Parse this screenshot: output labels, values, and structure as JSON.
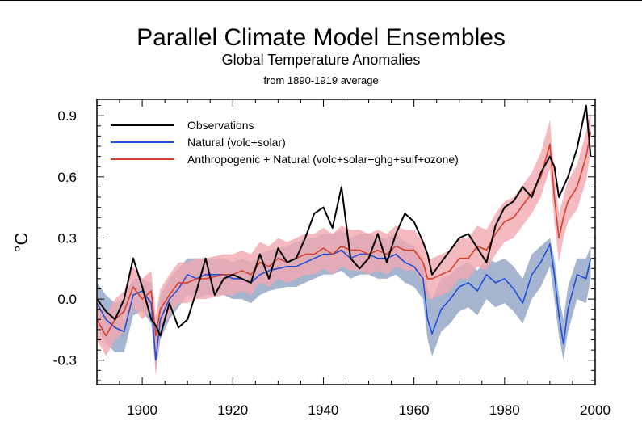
{
  "chart_data": {
    "type": "line",
    "title": "Parallel Climate Model Ensembles",
    "subtitle": "Global Temperature Anomalies",
    "subsubtitle": "from 1890-1919 average",
    "xlabel": "",
    "ylabel": "°C",
    "xlim": [
      1890,
      2000
    ],
    "ylim": [
      -0.42,
      0.98
    ],
    "x_ticks": [
      1900,
      1920,
      1940,
      1960,
      1980,
      2000
    ],
    "y_ticks": [
      -0.3,
      0.0,
      0.3,
      0.6,
      0.9
    ],
    "y_tick_labels": [
      "-0.3",
      "0.0",
      "0.3",
      "0.6",
      "0.9"
    ],
    "legend_position": "top-left",
    "grid": false,
    "colors": {
      "observations": "#000000",
      "natural": "#1f4fd8",
      "anthro": "#d6402a",
      "natural_band": "#8ea3c4",
      "anthro_band": "#f1a9b0"
    },
    "years": [
      1890,
      1892,
      1894,
      1896,
      1898,
      1900,
      1902,
      1903,
      1904,
      1906,
      1908,
      1910,
      1912,
      1914,
      1916,
      1918,
      1920,
      1922,
      1924,
      1926,
      1928,
      1930,
      1932,
      1934,
      1936,
      1938,
      1940,
      1942,
      1944,
      1946,
      1948,
      1950,
      1952,
      1954,
      1956,
      1958,
      1960,
      1962,
      1963,
      1964,
      1966,
      1968,
      1970,
      1972,
      1974,
      1976,
      1978,
      1980,
      1982,
      1984,
      1986,
      1988,
      1990,
      1991,
      1992,
      1993,
      1994,
      1996,
      1998,
      1999
    ],
    "series": [
      {
        "name": "Observations",
        "values": [
          0.0,
          -0.06,
          -0.1,
          0.0,
          0.2,
          0.06,
          -0.1,
          -0.13,
          -0.18,
          -0.02,
          -0.14,
          -0.1,
          0.04,
          0.2,
          0.02,
          0.1,
          0.12,
          0.1,
          0.08,
          0.22,
          0.1,
          0.25,
          0.18,
          0.2,
          0.3,
          0.42,
          0.45,
          0.35,
          0.55,
          0.2,
          0.15,
          0.2,
          0.32,
          0.18,
          0.32,
          0.42,
          0.38,
          0.28,
          0.22,
          0.12,
          0.18,
          0.24,
          0.3,
          0.32,
          0.25,
          0.18,
          0.36,
          0.45,
          0.48,
          0.55,
          0.5,
          0.62,
          0.7,
          0.65,
          0.5,
          0.55,
          0.6,
          0.74,
          0.95,
          0.7
        ]
      },
      {
        "name": "Natural (volc+solar)",
        "values": [
          -0.02,
          -0.1,
          -0.14,
          -0.16,
          0.02,
          0.04,
          -0.02,
          -0.3,
          -0.1,
          0.0,
          0.05,
          0.12,
          0.1,
          0.12,
          0.12,
          0.12,
          0.1,
          0.1,
          0.08,
          0.12,
          0.14,
          0.15,
          0.16,
          0.16,
          0.18,
          0.2,
          0.22,
          0.22,
          0.24,
          0.2,
          0.22,
          0.22,
          0.2,
          0.2,
          0.22,
          0.18,
          0.16,
          0.1,
          -0.1,
          -0.17,
          -0.05,
          0.0,
          0.06,
          0.08,
          0.04,
          0.12,
          0.08,
          0.1,
          0.05,
          -0.02,
          0.12,
          0.18,
          0.27,
          0.12,
          -0.08,
          -0.22,
          -0.05,
          0.12,
          0.1,
          0.2
        ]
      },
      {
        "name": "Anthropogenic + Natural (volc+solar+ghg+sulf+ozone)",
        "values": [
          -0.1,
          -0.18,
          -0.1,
          -0.06,
          0.06,
          0.0,
          0.04,
          -0.18,
          -0.05,
          0.02,
          0.08,
          0.08,
          0.1,
          0.1,
          0.11,
          0.12,
          0.12,
          0.14,
          0.12,
          0.18,
          0.16,
          0.2,
          0.18,
          0.2,
          0.22,
          0.22,
          0.25,
          0.22,
          0.26,
          0.24,
          0.24,
          0.22,
          0.24,
          0.22,
          0.26,
          0.24,
          0.24,
          0.18,
          0.1,
          0.1,
          0.12,
          0.14,
          0.2,
          0.2,
          0.26,
          0.24,
          0.32,
          0.38,
          0.4,
          0.46,
          0.52,
          0.6,
          0.76,
          0.5,
          0.3,
          0.4,
          0.48,
          0.55,
          0.7,
          0.82
        ]
      }
    ],
    "bands": [
      {
        "name": "Natural range",
        "upper": [
          0.08,
          0.02,
          -0.02,
          0.0,
          0.1,
          0.1,
          0.08,
          -0.18,
          0.02,
          0.1,
          0.15,
          0.2,
          0.2,
          0.2,
          0.2,
          0.2,
          0.18,
          0.2,
          0.18,
          0.22,
          0.24,
          0.25,
          0.26,
          0.28,
          0.3,
          0.3,
          0.32,
          0.32,
          0.34,
          0.3,
          0.32,
          0.32,
          0.3,
          0.3,
          0.32,
          0.28,
          0.26,
          0.2,
          0.05,
          0.0,
          0.1,
          0.12,
          0.16,
          0.18,
          0.14,
          0.2,
          0.18,
          0.2,
          0.16,
          0.1,
          0.22,
          0.26,
          0.3,
          0.2,
          0.02,
          -0.1,
          0.06,
          0.2,
          0.2,
          0.26
        ],
        "lower": [
          -0.14,
          -0.22,
          -0.26,
          -0.26,
          -0.08,
          -0.06,
          -0.12,
          -0.36,
          -0.2,
          -0.1,
          -0.04,
          0.02,
          0.0,
          0.02,
          0.02,
          0.02,
          0.0,
          0.0,
          -0.02,
          0.02,
          0.04,
          0.05,
          0.06,
          0.06,
          0.08,
          0.1,
          0.12,
          0.12,
          0.14,
          0.1,
          0.12,
          0.12,
          0.1,
          0.1,
          0.12,
          0.08,
          0.06,
          0.0,
          -0.2,
          -0.28,
          -0.16,
          -0.12,
          -0.06,
          -0.04,
          -0.08,
          0.0,
          -0.04,
          -0.02,
          -0.06,
          -0.12,
          0.0,
          0.06,
          0.16,
          0.0,
          -0.18,
          -0.3,
          -0.16,
          0.0,
          -0.02,
          0.1
        ]
      },
      {
        "name": "Anthropogenic + Natural range",
        "upper": [
          0.0,
          -0.08,
          0.0,
          0.04,
          0.16,
          0.1,
          0.14,
          -0.08,
          0.05,
          0.12,
          0.18,
          0.18,
          0.2,
          0.2,
          0.21,
          0.22,
          0.22,
          0.24,
          0.22,
          0.28,
          0.26,
          0.3,
          0.28,
          0.3,
          0.32,
          0.32,
          0.35,
          0.32,
          0.36,
          0.34,
          0.34,
          0.32,
          0.34,
          0.32,
          0.36,
          0.34,
          0.34,
          0.28,
          0.2,
          0.2,
          0.22,
          0.24,
          0.3,
          0.3,
          0.36,
          0.34,
          0.42,
          0.48,
          0.5,
          0.56,
          0.62,
          0.72,
          0.88,
          0.62,
          0.42,
          0.5,
          0.58,
          0.66,
          0.82,
          0.92
        ],
        "lower": [
          -0.2,
          -0.28,
          -0.2,
          -0.16,
          -0.04,
          -0.1,
          -0.06,
          -0.38,
          -0.15,
          -0.08,
          -0.02,
          -0.02,
          0.0,
          0.0,
          0.01,
          0.02,
          0.02,
          0.04,
          0.02,
          0.08,
          0.06,
          0.1,
          0.08,
          0.1,
          0.12,
          0.12,
          0.15,
          0.12,
          0.16,
          0.14,
          0.14,
          0.12,
          0.14,
          0.12,
          0.16,
          0.14,
          0.14,
          0.08,
          0.0,
          0.0,
          0.02,
          0.04,
          0.1,
          0.1,
          0.16,
          0.14,
          0.22,
          0.28,
          0.3,
          0.36,
          0.42,
          0.5,
          0.64,
          0.38,
          0.18,
          0.3,
          0.38,
          0.44,
          0.58,
          0.72
        ]
      }
    ]
  }
}
